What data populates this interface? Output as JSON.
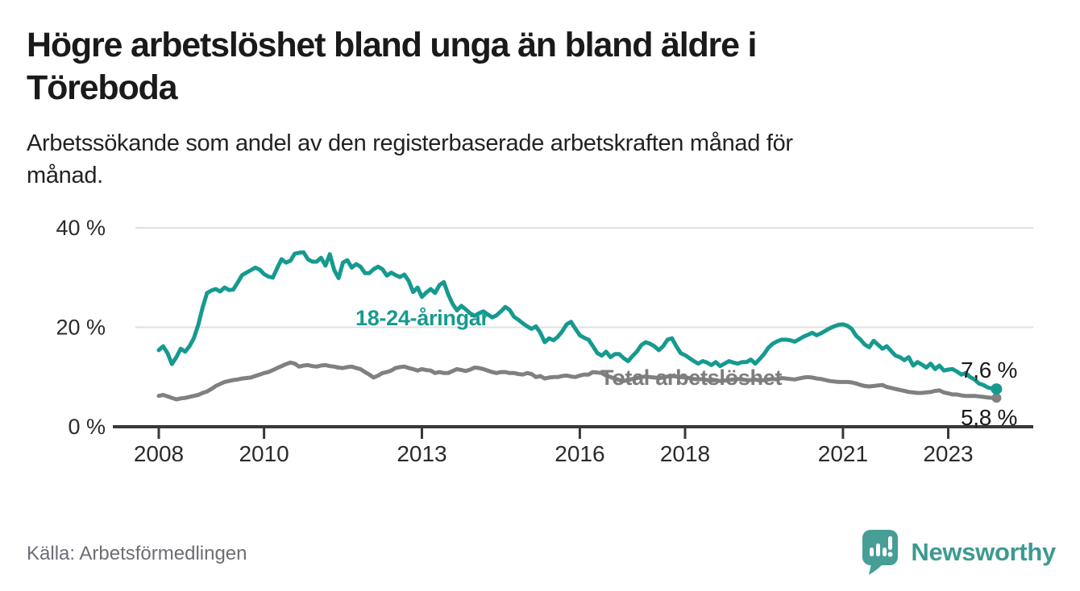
{
  "header": {
    "title_line1": "Högre arbetslöshet bland unga än bland äldre i",
    "title_line2": "Töreboda",
    "subtitle_line1": "Arbetssökande som andel av den registerbaserade arbetskraften månad för",
    "subtitle_line2": "månad."
  },
  "footer": {
    "source": "Källa: Arbetsförmedlingen",
    "brand": "Newsworthy"
  },
  "colors": {
    "youth_teal": "#169a90",
    "total_gray": "#808080",
    "axis_dark": "#383838",
    "gridline": "#e0e0e0",
    "brand_teal": "#479e97"
  },
  "chart_data": {
    "type": "line",
    "unit": "%",
    "frequency": "monthly",
    "x_start_year": 2008,
    "x_end_year": 2023,
    "points_per_year": 12,
    "x_ticks": [
      2008,
      2010,
      2013,
      2016,
      2018,
      2021,
      2023
    ],
    "y_ticks": [
      0,
      20,
      40
    ],
    "y_tick_suffix": " %",
    "ylim": [
      0,
      43.7
    ],
    "grid": true,
    "legend_position": "inline-labels",
    "series": [
      {
        "name": "Total arbetslöshet",
        "color": "#808080",
        "end_label": "5,8 %",
        "end_value": 5.8,
        "values": [
          6.2,
          6.4,
          6.1,
          5.8,
          5.5,
          5.7,
          5.8,
          6.0,
          6.2,
          6.4,
          6.8,
          7.1,
          7.6,
          8.2,
          8.6,
          9.0,
          9.2,
          9.4,
          9.5,
          9.7,
          9.8,
          9.9,
          10.2,
          10.5,
          10.8,
          11.0,
          11.4,
          11.8,
          12.2,
          12.6,
          12.9,
          12.7,
          12.1,
          12.3,
          12.4,
          12.2,
          12.1,
          12.3,
          12.4,
          12.2,
          12.1,
          11.9,
          11.8,
          12.0,
          12.1,
          11.8,
          11.6,
          11.0,
          10.5,
          9.9,
          10.3,
          10.8,
          11.0,
          11.3,
          11.8,
          12.0,
          12.1,
          11.8,
          11.6,
          11.3,
          11.6,
          11.4,
          11.3,
          10.8,
          11.0,
          10.8,
          10.8,
          11.2,
          11.6,
          11.4,
          11.2,
          11.5,
          11.9,
          11.8,
          11.6,
          11.3,
          11.0,
          10.8,
          11.0,
          11.0,
          10.8,
          10.8,
          10.6,
          10.5,
          10.8,
          10.6,
          10.0,
          10.2,
          9.7,
          9.9,
          10.0,
          10.0,
          10.2,
          10.3,
          10.1,
          10.0,
          10.3,
          10.5,
          10.5,
          11.0,
          10.9,
          10.8,
          10.3,
          10.0,
          9.7,
          9.4,
          9.2,
          9.4,
          9.6,
          9.8,
          10.0,
          10.1,
          10.0,
          9.9,
          9.8,
          9.9,
          10.1,
          10.2,
          10.1,
          10.0,
          9.9,
          9.8,
          9.6,
          9.5,
          9.6,
          9.4,
          9.3,
          9.4,
          9.2,
          9.3,
          9.4,
          9.5,
          9.6,
          9.5,
          9.4,
          9.4,
          9.5,
          9.3,
          9.4,
          9.5,
          9.6,
          9.5,
          9.8,
          9.7,
          9.6,
          9.5,
          9.7,
          9.9,
          10.0,
          9.9,
          9.7,
          9.6,
          9.4,
          9.2,
          9.1,
          9.0,
          9.0,
          9.0,
          8.9,
          8.7,
          8.4,
          8.2,
          8.1,
          8.2,
          8.3,
          8.4,
          8.0,
          7.8,
          7.6,
          7.4,
          7.2,
          7.0,
          6.9,
          6.8,
          6.8,
          6.9,
          7.0,
          7.2,
          7.3,
          6.9,
          6.7,
          6.5,
          6.5,
          6.3,
          6.2,
          6.2,
          6.2,
          6.1,
          6.0,
          5.9,
          5.8,
          5.8
        ]
      },
      {
        "name": "18-24-åringar",
        "color": "#169a90",
        "end_label": "7,6 %",
        "end_value": 7.6,
        "values": [
          15.4,
          16.2,
          14.8,
          12.6,
          14.0,
          15.7,
          15.1,
          16.2,
          17.8,
          20.5,
          24.0,
          26.9,
          27.4,
          27.7,
          27.2,
          28.0,
          27.5,
          27.6,
          29.0,
          30.5,
          31.0,
          31.5,
          32.0,
          31.6,
          30.7,
          30.2,
          30.0,
          31.9,
          33.7,
          33.0,
          33.4,
          34.8,
          35.0,
          35.1,
          33.7,
          33.2,
          33.2,
          34.0,
          32.4,
          34.7,
          31.5,
          29.9,
          33.0,
          33.5,
          32.0,
          32.7,
          32.2,
          30.9,
          30.9,
          31.7,
          32.2,
          31.7,
          30.4,
          31.0,
          30.5,
          30.1,
          30.6,
          29.3,
          27.1,
          28.0,
          26.1,
          27.0,
          27.7,
          26.9,
          28.5,
          29.1,
          26.6,
          24.7,
          23.4,
          24.3,
          23.6,
          22.8,
          22.3,
          22.8,
          23.2,
          22.6,
          22.0,
          22.4,
          23.2,
          24.1,
          23.5,
          22.1,
          21.5,
          20.8,
          20.2,
          19.7,
          20.2,
          18.9,
          17.0,
          17.8,
          17.4,
          18.1,
          19.2,
          20.6,
          21.1,
          19.7,
          18.4,
          17.9,
          17.5,
          16.2,
          14.8,
          14.3,
          15.1,
          14.0,
          14.6,
          14.6,
          13.8,
          13.2,
          14.2,
          15.1,
          16.4,
          17.0,
          16.7,
          16.2,
          15.4,
          16.2,
          17.5,
          17.8,
          16.2,
          14.8,
          14.4,
          13.8,
          13.2,
          12.7,
          13.2,
          12.9,
          12.4,
          13.0,
          12.2,
          12.7,
          13.2,
          12.9,
          12.7,
          13.0,
          13.0,
          13.5,
          12.7,
          13.6,
          14.6,
          15.9,
          16.7,
          17.2,
          17.5,
          17.5,
          17.4,
          17.1,
          17.6,
          18.1,
          18.5,
          18.9,
          18.4,
          18.8,
          19.3,
          19.8,
          20.2,
          20.5,
          20.6,
          20.3,
          19.7,
          18.3,
          17.5,
          16.5,
          16.0,
          17.3,
          16.5,
          15.7,
          16.2,
          15.2,
          14.3,
          14.0,
          13.4,
          14.0,
          12.3,
          13.0,
          12.5,
          11.9,
          12.7,
          11.6,
          12.3,
          11.3,
          11.5,
          11.6,
          11.1,
          10.5,
          10.8,
          10.0,
          9.5,
          8.7,
          8.4,
          7.9,
          7.7,
          7.6
        ]
      }
    ]
  }
}
